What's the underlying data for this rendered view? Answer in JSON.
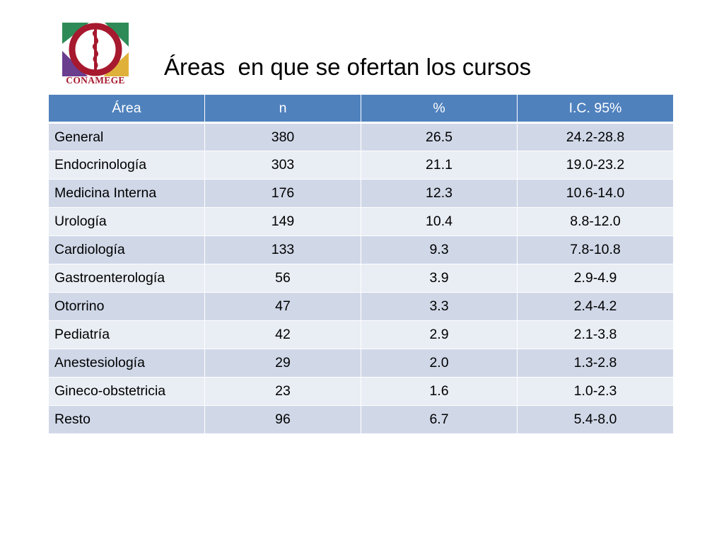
{
  "logo": {
    "text": "CONAMEGE",
    "colors": {
      "green": "#2e8b57",
      "purple": "#6a3d8f",
      "gold": "#e0b13a",
      "red": "#a6192e"
    }
  },
  "slide": {
    "title": "Áreas  en que se ofertan los cursos"
  },
  "table": {
    "headers": [
      "Área",
      "n",
      "%",
      "I.C. 95%"
    ],
    "rows": [
      [
        "General",
        "380",
        "26.5",
        "24.2-28.8"
      ],
      [
        "Endocrinología",
        "303",
        "21.1",
        "19.0-23.2"
      ],
      [
        "Medicina Interna",
        "176",
        "12.3",
        "10.6-14.0"
      ],
      [
        "Urología",
        "149",
        "10.4",
        "8.8-12.0"
      ],
      [
        "Cardiología",
        "133",
        "9.3",
        "7.8-10.8"
      ],
      [
        "Gastroenterología",
        "56",
        "3.9",
        "2.9-4.9"
      ],
      [
        "Otorrino",
        "47",
        "3.3",
        "2.4-4.2"
      ],
      [
        "Pediatría",
        "42",
        "2.9",
        "2.1-3.8"
      ],
      [
        "Anestesiología",
        "29",
        "2.0",
        "1.3-2.8"
      ],
      [
        "Gineco-obstetricia",
        "23",
        "1.6",
        "1.0-2.3"
      ],
      [
        "Resto",
        "96",
        "6.7",
        "5.4-8.0"
      ]
    ]
  }
}
